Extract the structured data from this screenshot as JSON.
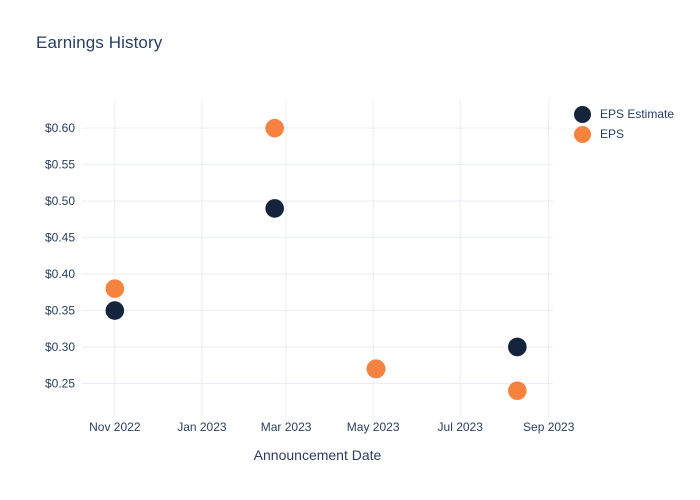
{
  "chart_data": {
    "type": "scatter",
    "title": "Earnings History",
    "xlabel": "Announcement Date",
    "ylabel": "",
    "grid": true,
    "legend_position": "outside-top-right",
    "background_color": "#ffffff",
    "grid_color": "#e9eef6",
    "text_color": "#2a3f5f",
    "marker_radius": 9.3,
    "xlim_dates": [
      "2022-10-09",
      "2023-09-04"
    ],
    "ylim": [
      0.204,
      0.64
    ],
    "x_ticks": [
      {
        "date": "2022-11-01",
        "label": "Nov 2022"
      },
      {
        "date": "2023-01-01",
        "label": "Jan 2023"
      },
      {
        "date": "2023-03-01",
        "label": "Mar 2023"
      },
      {
        "date": "2023-05-01",
        "label": "May 2023"
      },
      {
        "date": "2023-07-01",
        "label": "Jul 2023"
      },
      {
        "date": "2023-09-01",
        "label": "Sep 2023"
      }
    ],
    "y_ticks": [
      {
        "value": 0.25,
        "label": "$0.25"
      },
      {
        "value": 0.3,
        "label": "$0.30"
      },
      {
        "value": 0.35,
        "label": "$0.35"
      },
      {
        "value": 0.4,
        "label": "$0.40"
      },
      {
        "value": 0.45,
        "label": "$0.45"
      },
      {
        "value": 0.5,
        "label": "$0.50"
      },
      {
        "value": 0.55,
        "label": "$0.55"
      },
      {
        "value": 0.6,
        "label": "$0.60"
      }
    ],
    "series": [
      {
        "name": "EPS Estimate",
        "color": "#15243D",
        "points": [
          {
            "date": "2022-11-01",
            "value": 0.35
          },
          {
            "date": "2023-02-21",
            "value": 0.49
          },
          {
            "date": "2023-05-03",
            "value": 0.27
          },
          {
            "date": "2023-08-10",
            "value": 0.3
          }
        ]
      },
      {
        "name": "EPS",
        "color": "#F5823E",
        "points": [
          {
            "date": "2022-11-01",
            "value": 0.38
          },
          {
            "date": "2023-02-21",
            "value": 0.6
          },
          {
            "date": "2023-05-03",
            "value": 0.27
          },
          {
            "date": "2023-08-10",
            "value": 0.24
          }
        ]
      }
    ]
  }
}
